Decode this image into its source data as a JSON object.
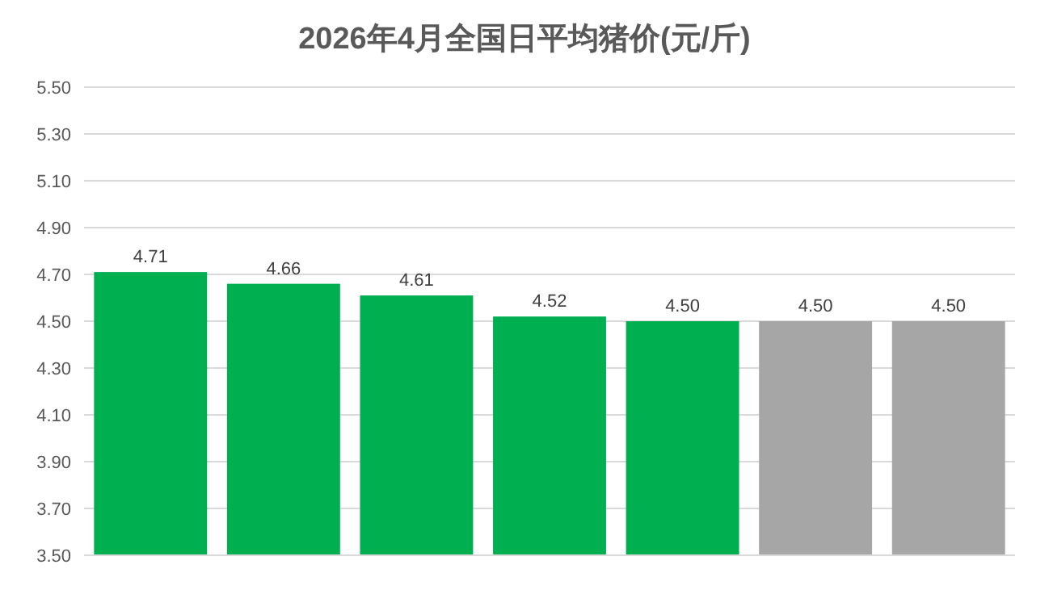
{
  "chart_data": {
    "type": "bar",
    "title": "2026年4月全国日平均猪价(元/斤)",
    "categories": [
      null,
      null,
      null,
      null,
      null,
      null,
      null
    ],
    "values": [
      4.71,
      4.66,
      4.61,
      4.52,
      4.5,
      4.5,
      4.5
    ],
    "value_labels": [
      "4.71",
      "4.66",
      "4.61",
      "4.52",
      "4.50",
      "4.50",
      "4.50"
    ],
    "colors": [
      "#00b050",
      "#00b050",
      "#00b050",
      "#00b050",
      "#00b050",
      "#a6a6a6",
      "#a6a6a6"
    ],
    "ylim": [
      3.5,
      5.5
    ],
    "yticks": [
      {
        "value": 3.5,
        "label": "3.50"
      },
      {
        "value": 3.7,
        "label": "3.70"
      },
      {
        "value": 3.9,
        "label": "3.90"
      },
      {
        "value": 4.1,
        "label": "4.10"
      },
      {
        "value": 4.3,
        "label": "4.30"
      },
      {
        "value": 4.5,
        "label": "4.50"
      },
      {
        "value": 4.7,
        "label": "4.70"
      },
      {
        "value": 4.9,
        "label": "4.90"
      },
      {
        "value": 5.1,
        "label": "5.10"
      },
      {
        "value": 5.3,
        "label": "5.30"
      },
      {
        "value": 5.5,
        "label": "5.50"
      }
    ],
    "grid": "y"
  }
}
